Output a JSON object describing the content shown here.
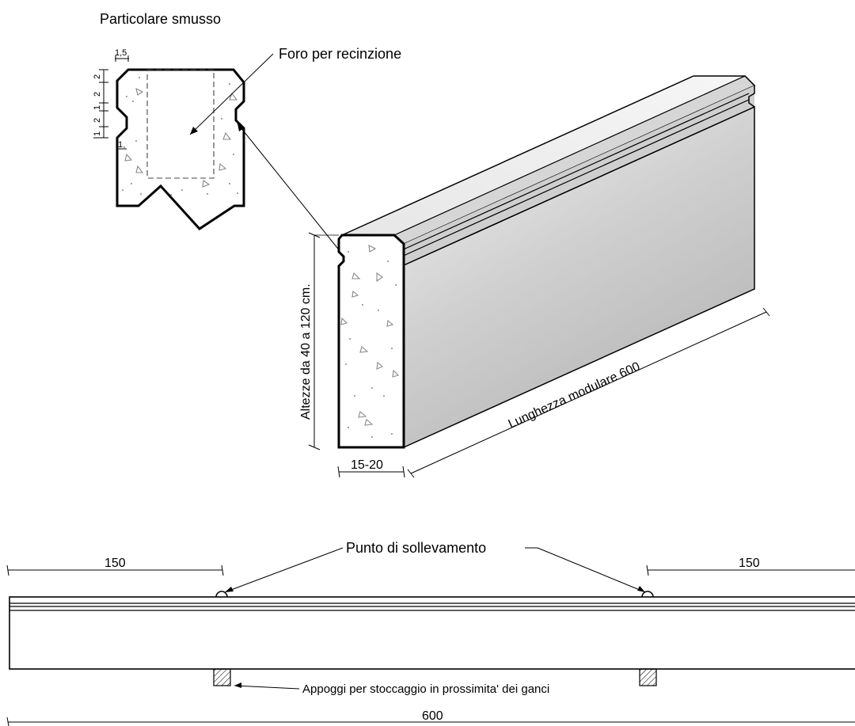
{
  "detail": {
    "title": "Particolare smusso",
    "hole_label": "Foro per recinzione",
    "dims": {
      "top": "1,5",
      "d1": "2",
      "d2": "2",
      "d3": "1",
      "d4": "2",
      "d5": "1",
      "d6": "1"
    }
  },
  "iso": {
    "height_label": "Altezze da 40 a 120 cm.",
    "length_label": "Lunghezza modulare 600",
    "width_label": "15-20"
  },
  "elevation": {
    "lift_label": "Punto di sollevamento",
    "left_dim": "150",
    "right_dim": "150",
    "support_label": "Appoggi per stoccaggio in prossimita' dei ganci",
    "total_dim": "600"
  }
}
